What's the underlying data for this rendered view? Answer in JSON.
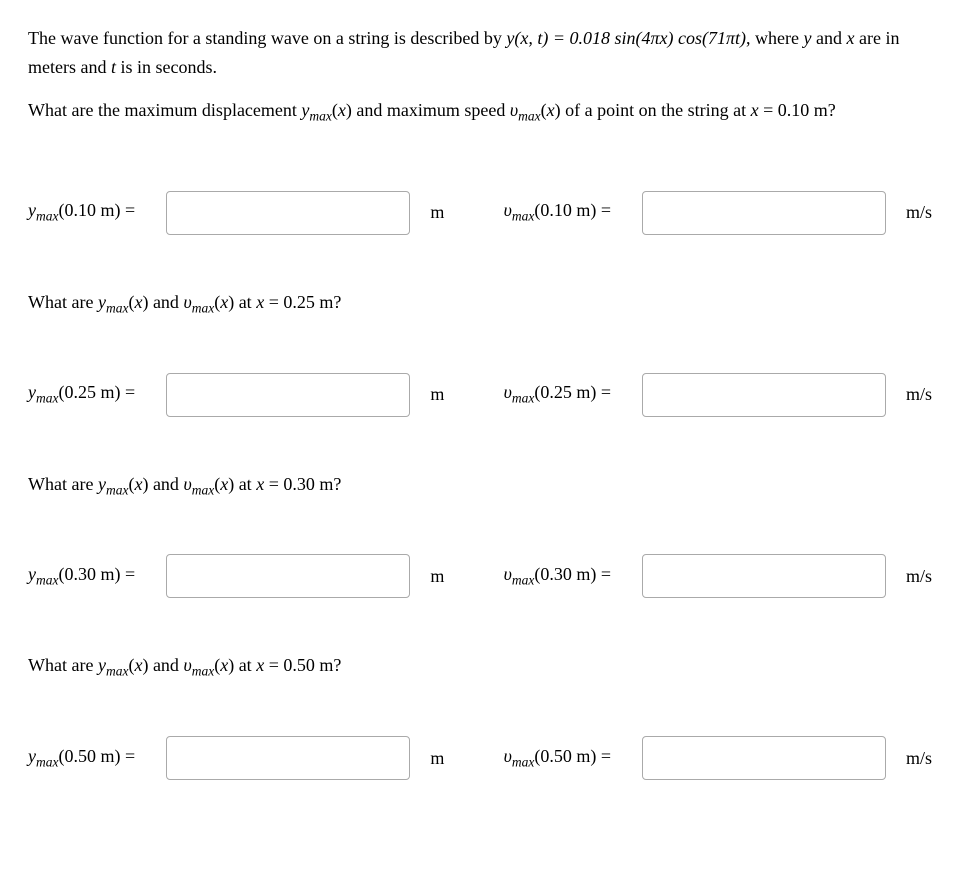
{
  "intro": {
    "p1_a": "The wave function for a standing wave on a string is described by ",
    "eqn": "y(x, t) = 0.018 sin(4πx) cos(71πt)",
    "p1_b": ", where ",
    "p1_c": " and ",
    "p1_d": " are in meters and ",
    "p1_e": " is in seconds.",
    "var_y": "y",
    "var_x": "x",
    "var_t": "t",
    "p2_a": "What are the maximum displacement ",
    "ymax_lbl": "ymax",
    "p2_b": "(",
    "p2_c": ") and maximum speed ",
    "vmax_lbl": "υmax",
    "p2_d": "(",
    "p2_e": ") of a point on the string at ",
    "p2_f": " = 0.10 m?"
  },
  "q2": {
    "a": "What are ",
    "b": "(",
    "c": ") and ",
    "d": "(",
    "e": ") at ",
    "f": " = 0.25 m?"
  },
  "q3": {
    "f": " = 0.30 m?"
  },
  "q4": {
    "f": " = 0.50 m?"
  },
  "rows": {
    "r1": {
      "ylabel_val": "(0.10 m) = ",
      "vlabel_val": "(0.10 m) = "
    },
    "r2": {
      "ylabel_val": "(0.25 m) = ",
      "vlabel_val": "(0.25 m) = "
    },
    "r3": {
      "ylabel_val": "(0.30 m) = ",
      "vlabel_val": "(0.30 m) = "
    },
    "r4": {
      "ylabel_val": "(0.50 m) = ",
      "vlabel_val": "(0.50 m) = "
    }
  },
  "units": {
    "m": "m",
    "ms": "m/s"
  },
  "sym": {
    "y": "y",
    "ymax_pre": "y",
    "ymax_sub": "max",
    "vmax_pre": "υ",
    "vmax_sub": "max",
    "x": "x"
  }
}
